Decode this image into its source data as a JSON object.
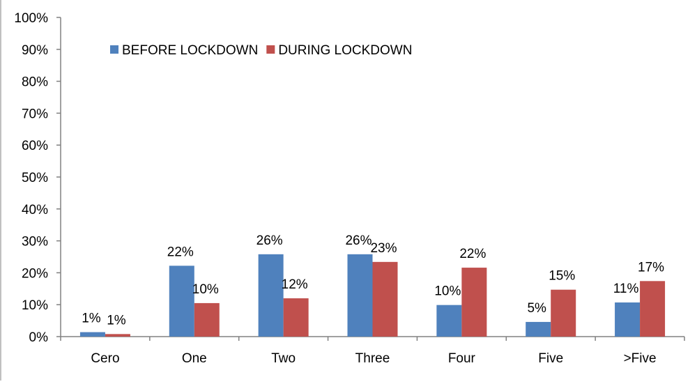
{
  "chart_data": {
    "type": "bar",
    "categories": [
      "Cero",
      "One",
      "Two",
      "Three",
      "Four",
      "Five",
      ">Five"
    ],
    "series": [
      {
        "name": "BEFORE LOCKDOWN",
        "color": "#4F81BD",
        "values": [
          1.4,
          22.2,
          25.8,
          25.8,
          9.9,
          4.6,
          10.7
        ],
        "labels": [
          "1%",
          "22%",
          "26%",
          "26%",
          "10%",
          "5%",
          "11%"
        ]
      },
      {
        "name": "DURING LOCKDOWN",
        "color": "#C0504D",
        "values": [
          0.8,
          10.5,
          12.0,
          23.4,
          21.6,
          14.7,
          17.4
        ],
        "labels": [
          "1%",
          "10%",
          "12%",
          "23%",
          "22%",
          "15%",
          "17%"
        ]
      }
    ],
    "yticks": [
      "0%",
      "10%",
      "20%",
      "30%",
      "40%",
      "50%",
      "60%",
      "70%",
      "80%",
      "90%",
      "100%"
    ],
    "ylim": [
      0,
      100
    ],
    "legend_position": "top-left",
    "grid": false
  }
}
